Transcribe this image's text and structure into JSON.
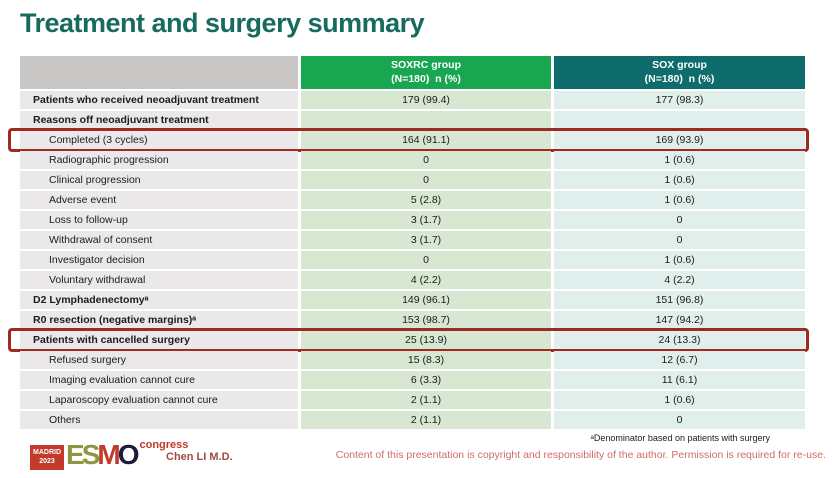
{
  "title": "Treatment and surgery summary",
  "colors": {
    "title_color": "#166a5e",
    "header_green": "#18a650",
    "header_teal": "#0f6c6d",
    "cell_green": "#d7e7d1",
    "cell_teal": "#e1efec",
    "highlight_red": "#9e2b23"
  },
  "table": {
    "header": {
      "soxrc_line1": "SOXRC group",
      "soxrc_line2": "(N=180)  n (%)",
      "sox_line1": "SOX group",
      "sox_line2": "(N=180)  n (%)"
    },
    "rows": [
      {
        "label": "Patients who received neoadjuvant treatment",
        "soxrc": "179 (99.4)",
        "sox": "177 (98.3)",
        "bold": true,
        "indent": false,
        "highlight": false
      },
      {
        "label": "Reasons off neoadjuvant treatment",
        "soxrc": "",
        "sox": "",
        "bold": true,
        "indent": false,
        "highlight": false
      },
      {
        "label": "Completed (3 cycles)",
        "soxrc": "164 (91.1)",
        "sox": "169 (93.9)",
        "bold": false,
        "indent": true,
        "highlight": true
      },
      {
        "label": "Radiographic progression",
        "soxrc": "0",
        "sox": "1 (0.6)",
        "bold": false,
        "indent": true,
        "highlight": false
      },
      {
        "label": "Clinical progression",
        "soxrc": "0",
        "sox": "1 (0.6)",
        "bold": false,
        "indent": true,
        "highlight": false
      },
      {
        "label": "Adverse event",
        "soxrc": "5 (2.8)",
        "sox": "1 (0.6)",
        "bold": false,
        "indent": true,
        "highlight": false
      },
      {
        "label": "Loss to follow-up",
        "soxrc": "3 (1.7)",
        "sox": "0",
        "bold": false,
        "indent": true,
        "highlight": false
      },
      {
        "label": "Withdrawal of consent",
        "soxrc": "3 (1.7)",
        "sox": "0",
        "bold": false,
        "indent": true,
        "highlight": false
      },
      {
        "label": "Investigator decision",
        "soxrc": "0",
        "sox": "1 (0.6)",
        "bold": false,
        "indent": true,
        "highlight": false
      },
      {
        "label": "Voluntary withdrawal",
        "soxrc": "4 (2.2)",
        "sox": "4 (2.2)",
        "bold": false,
        "indent": true,
        "highlight": false
      },
      {
        "label": "D2 Lymphadenectomyᵃ",
        "soxrc": "149 (96.1)",
        "sox": "151 (96.8)",
        "bold": true,
        "indent": false,
        "highlight": false
      },
      {
        "label": "R0 resection (negative margins)ᵃ",
        "soxrc": "153 (98.7)",
        "sox": "147 (94.2)",
        "bold": true,
        "indent": false,
        "highlight": false
      },
      {
        "label": "Patients with cancelled surgery",
        "soxrc": "25 (13.9)",
        "sox": "24 (13.3)",
        "bold": true,
        "indent": false,
        "highlight": true
      },
      {
        "label": "Refused surgery",
        "soxrc": "15 (8.3)",
        "sox": "12 (6.7)",
        "bold": false,
        "indent": true,
        "highlight": false
      },
      {
        "label": "Imaging evaluation cannot cure",
        "soxrc": "6 (3.3)",
        "sox": "11 (6.1)",
        "bold": false,
        "indent": true,
        "highlight": false
      },
      {
        "label": "Laparoscopy evaluation cannot cure",
        "soxrc": "2 (1.1)",
        "sox": "1 (0.6)",
        "bold": false,
        "indent": true,
        "highlight": false
      },
      {
        "label": "Others",
        "soxrc": "2 (1.1)",
        "sox": "0",
        "bold": false,
        "indent": true,
        "highlight": false
      }
    ]
  },
  "footer": {
    "logo": {
      "badge_line1": "MADRID",
      "badge_line2": "2023",
      "letters": [
        "E",
        "S",
        "M",
        "O"
      ],
      "congress": "congress"
    },
    "presenter": "Chen LI M.D.",
    "footnote": "ᵃDenominator based on patients with surgery",
    "copyright": "Content of this presentation is copyright and responsibility of the author. Permission is required for re-use."
  }
}
